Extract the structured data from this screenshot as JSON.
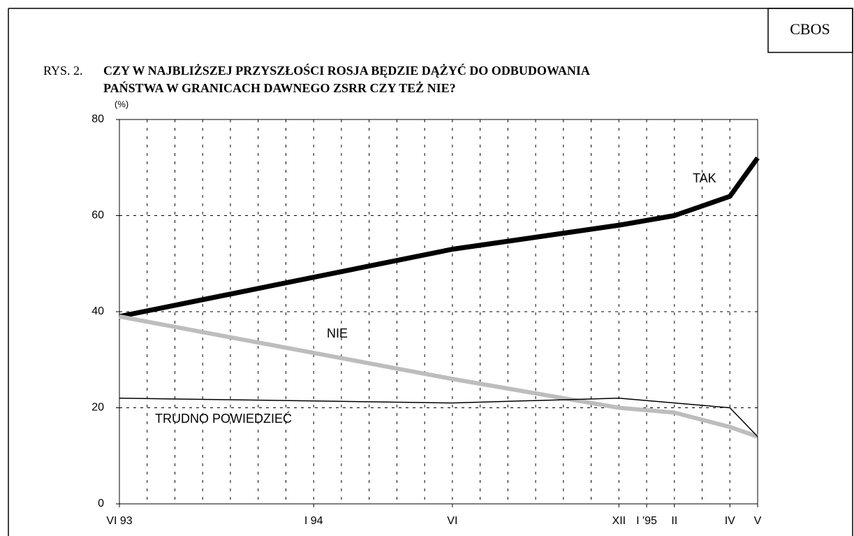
{
  "source": "CBOS",
  "chart_data": {
    "type": "line",
    "figure_label": "RYS. 2.",
    "title_lines": [
      "CZY W NAJBLIŻSZEJ PRZYSZŁOŚCI ROSJA BĘDZIE DĄŻYĆ DO ODBUDOWANIA",
      "PAŃSTWA W GRANICACH DAWNEGO ZSRR CZY TEŻ NIE?"
    ],
    "y_unit": "(%)",
    "x": [
      0,
      12,
      18,
      20,
      22,
      23
    ],
    "xlim": [
      0,
      23
    ],
    "xticks": [
      {
        "value": 0,
        "label": "VI 93"
      },
      {
        "value": 7,
        "label": "I 94"
      },
      {
        "value": 12,
        "label": "VI"
      },
      {
        "value": 18,
        "label": "XII"
      },
      {
        "value": 19,
        "label": "I '95"
      },
      {
        "value": 20,
        "label": "II"
      },
      {
        "value": 22,
        "label": "IV"
      },
      {
        "value": 23,
        "label": "V"
      }
    ],
    "xgrid": [
      0,
      1,
      2,
      3,
      4,
      5,
      6,
      7,
      8,
      9,
      10,
      11,
      12,
      13,
      14,
      15,
      16,
      17,
      18,
      19,
      20,
      21,
      22,
      23
    ],
    "ylim": [
      0,
      80
    ],
    "yticks": [
      0,
      20,
      40,
      60,
      80
    ],
    "grid": true,
    "series": [
      {
        "name": "TAK",
        "color": "#000000",
        "line_width": 7,
        "values": [
          39,
          53,
          58,
          60,
          64,
          72
        ]
      },
      {
        "name": "NIE",
        "color": "#bdbdbd",
        "line_width": 6,
        "values": [
          39,
          26,
          20,
          19,
          16,
          14
        ]
      },
      {
        "name": "TRUDNO POWIEDZIEĆ",
        "color": "#000000",
        "line_width": 1.5,
        "values": [
          22,
          21,
          22,
          21,
          20,
          14
        ]
      }
    ]
  }
}
